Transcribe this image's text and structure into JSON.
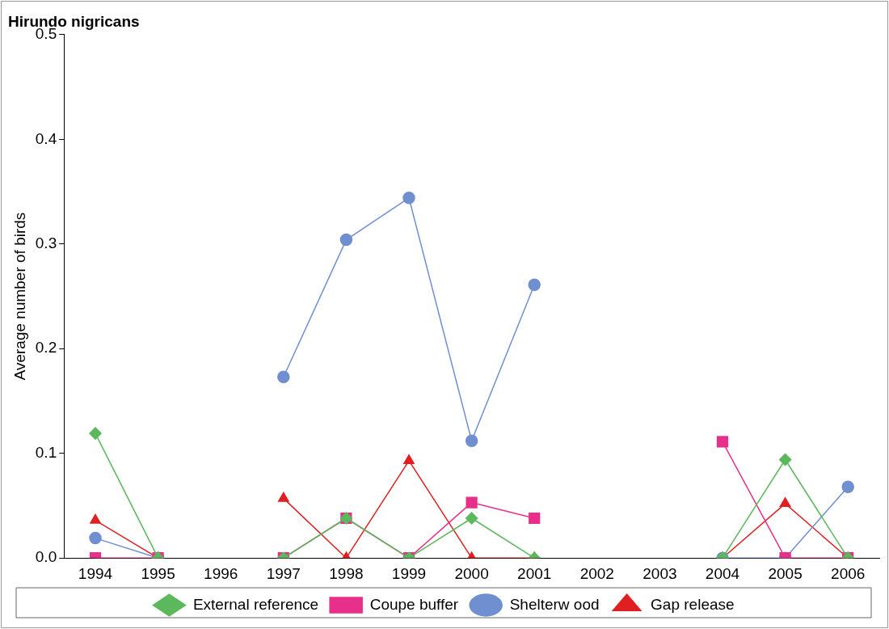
{
  "chart_data": {
    "type": "line",
    "title": "Hirundo nigricans",
    "ylabel": "Average number of birds",
    "categories": [
      "1994",
      "1995",
      "1996",
      "1997",
      "1998",
      "1999",
      "2000",
      "2001",
      "2002",
      "2003",
      "2004",
      "2005",
      "2006"
    ],
    "series": [
      {
        "name": "External reference",
        "color": "#5cb85c",
        "marker": "diamond",
        "values": [
          0.119,
          0,
          null,
          0,
          0.038,
          0,
          0.038,
          0,
          null,
          null,
          0,
          0.094,
          0
        ]
      },
      {
        "name": "Coupe buffer",
        "color": "#e8308a",
        "marker": "square",
        "values": [
          0,
          0,
          null,
          0,
          0.038,
          0,
          0.053,
          0.038,
          null,
          null,
          0.111,
          0,
          0
        ]
      },
      {
        "name": "Shelterw ood",
        "color": "#6f8fd0",
        "marker": "circle",
        "values": [
          0.019,
          0,
          null,
          0.173,
          0.304,
          0.344,
          0.112,
          0.261,
          null,
          null,
          0,
          0,
          0.068
        ]
      },
      {
        "name": "Gap release",
        "color": "#e02020",
        "marker": "triangle",
        "values": [
          0.036,
          0,
          null,
          0.057,
          0,
          0.093,
          0,
          0,
          null,
          null,
          0,
          0.052,
          0
        ]
      }
    ],
    "ylim": [
      0,
      0.5
    ],
    "yticks": [
      {
        "value": 0,
        "label": "0.0"
      },
      {
        "value": 0.1,
        "label": "0.1"
      },
      {
        "value": 0.2,
        "label": "0.2"
      },
      {
        "value": 0.3,
        "label": "0.3"
      },
      {
        "value": 0.4,
        "label": "0.4"
      },
      {
        "value": 0.5,
        "label": "0.5"
      }
    ],
    "grid": false,
    "legend": "bottom"
  }
}
